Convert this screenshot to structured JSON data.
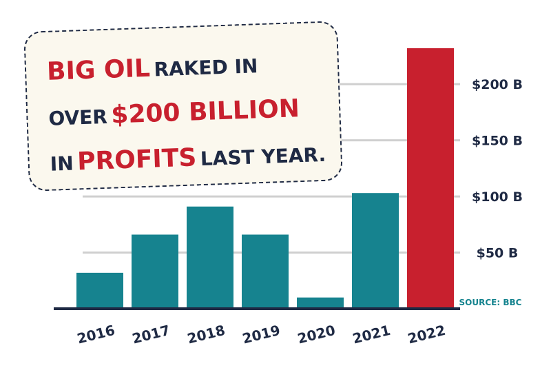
{
  "colors": {
    "bar": "#16838f",
    "highlight_bar": "#c8202e",
    "axis": "#1f2a44",
    "grid": "#cfcfcf",
    "callout_bg": "#fbf8ee",
    "source": "#14838e"
  },
  "headline": {
    "line1_emph": "BIG OIL",
    "line1_rest": "RAKED IN",
    "line2_pre": "OVER",
    "line2_emph": "$200 BILLION",
    "line3_pre": "IN",
    "line3_emph": "PROFITS",
    "line3_rest": "LAST YEAR."
  },
  "source": "SOURCE: BBC",
  "chart_data": {
    "type": "bar",
    "categories": [
      "2016",
      "2017",
      "2018",
      "2019",
      "2020",
      "2021",
      "2022"
    ],
    "values": [
      32,
      66,
      91,
      66,
      10,
      103,
      232
    ],
    "highlight_index": 6,
    "ylim": [
      0,
      232
    ],
    "yticks": [
      50,
      100,
      150,
      200
    ],
    "ytick_labels": [
      "$50 B",
      "$100 B",
      "$150 B",
      "$200 B"
    ],
    "grid": true,
    "title": "",
    "xlabel": "",
    "ylabel": ""
  }
}
